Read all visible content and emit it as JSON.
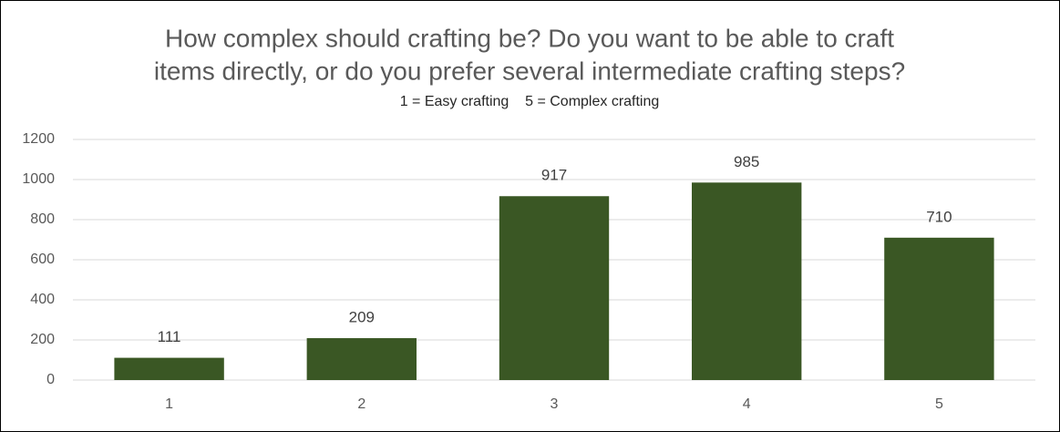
{
  "chart_data": {
    "type": "bar",
    "title": [
      "How complex should crafting be? Do you want to be able to craft",
      "items directly, or do you prefer several intermediate crafting steps?"
    ],
    "subtitle": "1 = Easy crafting    5 = Complex crafting",
    "categories": [
      "1",
      "2",
      "3",
      "4",
      "5"
    ],
    "values": [
      111,
      209,
      917,
      985,
      710
    ],
    "color": "#3a5724",
    "ylim": [
      0,
      1200
    ],
    "yticks": [
      0,
      200,
      400,
      600,
      800,
      1000,
      1200
    ],
    "grid": true
  }
}
